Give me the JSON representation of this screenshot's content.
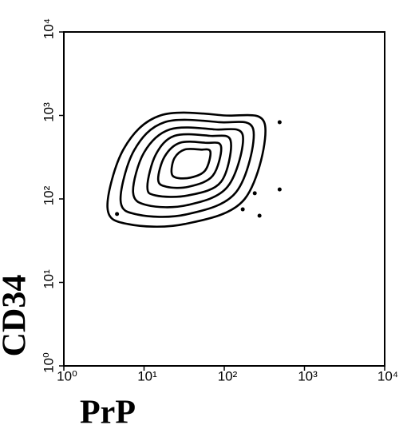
{
  "chart_data": {
    "type": "contour",
    "x_label": "PrP",
    "y_label": "CD34",
    "xscale": "log",
    "yscale": "log",
    "xlim": [
      1,
      10000
    ],
    "ylim": [
      1,
      10000
    ],
    "xticks": [
      {
        "value": 1,
        "label": "10⁰"
      },
      {
        "value": 10,
        "label": "10¹"
      },
      {
        "value": 100,
        "label": "10²"
      },
      {
        "value": 1000,
        "label": "10³"
      },
      {
        "value": 10000,
        "label": "10⁴"
      }
    ],
    "yticks": [
      {
        "value": 1,
        "label": "10⁰"
      },
      {
        "value": 10,
        "label": "10¹"
      },
      {
        "value": 100,
        "label": "10²"
      },
      {
        "value": 1000,
        "label": "10³"
      },
      {
        "value": 10000,
        "label": "10⁴"
      }
    ],
    "color": "#000000",
    "contours": [
      {
        "x": [
          320,
          100,
          16,
          5.6,
          3.5,
          6.3,
          32,
          180
        ],
        "y": [
          790,
          1000,
          1000,
          400,
          79,
          50,
          50,
          100
        ]
      },
      {
        "x": [
          230,
          87,
          18,
          7.5,
          5.1,
          8.3,
          33,
          140
        ],
        "y": [
          680,
          830,
          830,
          380,
          96,
          65,
          65,
          120
        ]
      },
      {
        "x": [
          170,
          76,
          21,
          10,
          7.3,
          11,
          34,
          110
        ],
        "y": [
          580,
          680,
          680,
          360,
          120,
          84,
          84,
          140
        ]
      },
      {
        "x": [
          120,
          66,
          24,
          14,
          11,
          14,
          35,
          91
        ],
        "y": [
          500,
          570,
          570,
          340,
          140,
          110,
          110,
          160
        ]
      },
      {
        "x": [
          91,
          58,
          28,
          18,
          15,
          19,
          36,
          72
        ],
        "y": [
          430,
          470,
          470,
          320,
          170,
          140,
          140,
          190
        ]
      },
      {
        "x": [
          67,
          50,
          32,
          24,
          22,
          25,
          38,
          58
        ],
        "y": [
          370,
          390,
          390,
          310,
          210,
          180,
          180,
          220
        ]
      }
    ],
    "points": {
      "x": [
        4.6,
        170,
        275,
        490,
        490,
        240
      ],
      "y": [
        66,
        75,
        63,
        130,
        830,
        117
      ]
    }
  }
}
